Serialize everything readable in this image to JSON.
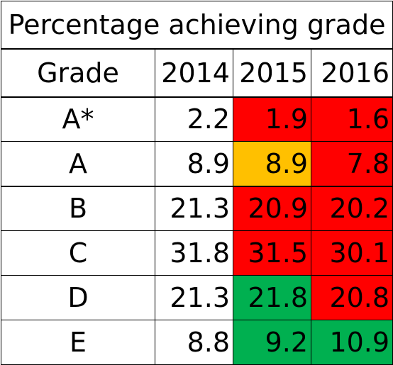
{
  "table": {
    "title": "Percentage achieving grade",
    "header": {
      "grade_label": "Grade",
      "years": [
        "2014",
        "2015",
        "2016"
      ]
    },
    "colors": {
      "red": "#ff0000",
      "amber": "#ffc000",
      "green": "#00b050"
    },
    "rows": [
      {
        "grade": "A*",
        "values": [
          "2.2",
          "1.9",
          "1.6"
        ],
        "status": [
          "none",
          "red",
          "red"
        ]
      },
      {
        "grade": "A",
        "values": [
          "8.9",
          "8.9",
          "7.8"
        ],
        "status": [
          "none",
          "amber",
          "red"
        ]
      },
      {
        "grade": "B",
        "values": [
          "21.3",
          "20.9",
          "20.2"
        ],
        "status": [
          "none",
          "red",
          "red"
        ]
      },
      {
        "grade": "C",
        "values": [
          "31.8",
          "31.5",
          "30.1"
        ],
        "status": [
          "none",
          "red",
          "red"
        ]
      },
      {
        "grade": "D",
        "values": [
          "21.3",
          "21.8",
          "20.8"
        ],
        "status": [
          "none",
          "green",
          "red"
        ]
      },
      {
        "grade": "E",
        "values": [
          "8.8",
          "9.2",
          "10.9"
        ],
        "status": [
          "none",
          "green",
          "green"
        ]
      }
    ]
  }
}
